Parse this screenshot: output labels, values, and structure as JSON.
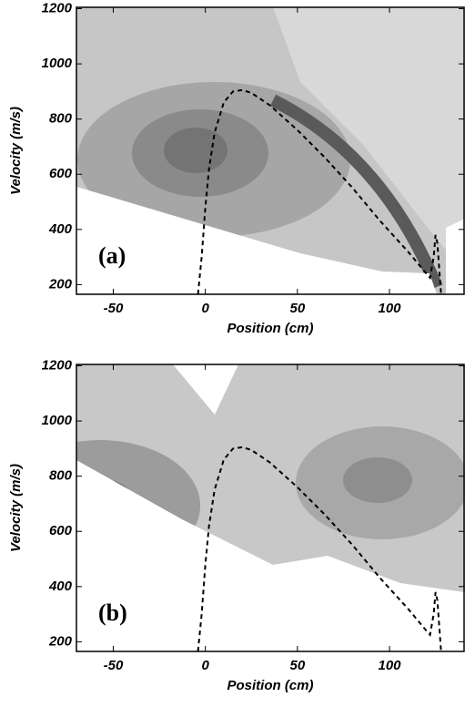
{
  "chart_data": [
    {
      "type": "line",
      "panel_label": "(a)",
      "xlabel": "Position (cm)",
      "ylabel": "Velocity (m/s)",
      "xlim": [
        -70,
        141
      ],
      "ylim": [
        165,
        1205
      ],
      "xticks": [
        -50,
        0,
        50,
        100
      ],
      "yticks": [
        200,
        400,
        600,
        800,
        1000,
        1200
      ],
      "x": [
        -4,
        -2,
        0,
        2,
        5,
        10,
        15,
        20,
        25,
        35,
        50,
        65,
        80,
        95,
        110,
        120,
        122,
        124,
        125,
        126,
        128
      ],
      "series": [
        {
          "color": "#000000",
          "dashed": true,
          "values": [
            165,
            300,
            480,
            620,
            750,
            860,
            900,
            905,
            895,
            850,
            760,
            660,
            550,
            430,
            320,
            240,
            225,
            300,
            380,
            350,
            165
          ]
        }
      ]
    },
    {
      "type": "line",
      "panel_label": "(b)",
      "xlabel": "Position (cm)",
      "ylabel": "Velocity (m/s)",
      "xlim": [
        -70,
        141
      ],
      "ylim": [
        165,
        1205
      ],
      "xticks": [
        -50,
        0,
        50,
        100
      ],
      "yticks": [
        200,
        400,
        600,
        800,
        1000,
        1200
      ],
      "x": [
        -4,
        -2,
        0,
        2,
        5,
        10,
        15,
        20,
        25,
        35,
        50,
        65,
        80,
        95,
        110,
        120,
        122,
        124,
        125,
        126,
        128
      ],
      "series": [
        {
          "color": "#000000",
          "dashed": true,
          "values": [
            165,
            300,
            480,
            620,
            750,
            860,
            900,
            905,
            895,
            850,
            760,
            660,
            550,
            430,
            320,
            240,
            225,
            300,
            380,
            350,
            165
          ]
        }
      ]
    }
  ]
}
